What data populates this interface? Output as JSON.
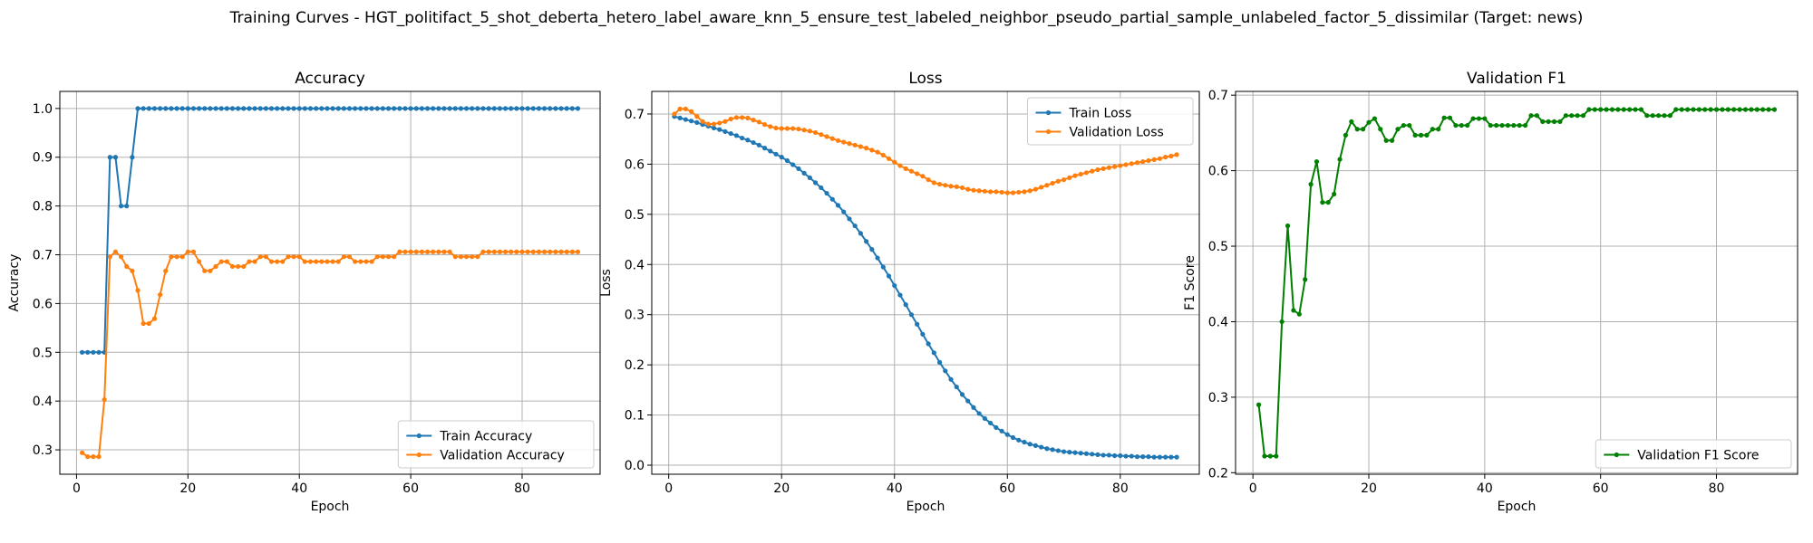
{
  "figure": {
    "title": "Training Curves - HGT_politifact_5_shot_deberta_hetero_label_aware_knn_5_ensure_test_labeled_neighbor_pseudo_partial_sample_unlabeled_factor_5_dissimilar (Target: news)"
  },
  "chart_data": [
    {
      "type": "line",
      "title": "Accuracy",
      "xlabel": "Epoch",
      "ylabel": "Accuracy",
      "xlim": [
        -3,
        94
      ],
      "ylim": [
        0.25,
        1.035
      ],
      "xticks": [
        0,
        20,
        40,
        60,
        80
      ],
      "yticks": [
        0.3,
        0.4,
        0.5,
        0.6,
        0.7,
        0.8,
        0.9,
        1.0
      ],
      "ytick_labels": [
        "0.3",
        "0.4",
        "0.5",
        "0.6",
        "0.7",
        "0.8",
        "0.9",
        "1.0"
      ],
      "grid": true,
      "legend": "lower-right",
      "x_start": 1,
      "series": [
        {
          "name": "Train Accuracy",
          "color": "#1f77b4",
          "values": [
            0.5,
            0.5,
            0.5,
            0.5,
            0.5,
            0.9,
            0.9,
            0.8,
            0.8,
            0.9,
            1,
            1,
            1,
            1,
            1,
            1,
            1,
            1,
            1,
            1,
            1,
            1,
            1,
            1,
            1,
            1,
            1,
            1,
            1,
            1,
            1,
            1,
            1,
            1,
            1,
            1,
            1,
            1,
            1,
            1,
            1,
            1,
            1,
            1,
            1,
            1,
            1,
            1,
            1,
            1,
            1,
            1,
            1,
            1,
            1,
            1,
            1,
            1,
            1,
            1,
            1,
            1,
            1,
            1,
            1,
            1,
            1,
            1,
            1,
            1,
            1,
            1,
            1,
            1,
            1,
            1,
            1,
            1,
            1,
            1,
            1,
            1,
            1,
            1,
            1,
            1,
            1,
            1,
            1,
            1
          ]
        },
        {
          "name": "Validation Accuracy",
          "color": "#ff7f0e",
          "values": [
            0.294,
            0.286,
            0.286,
            0.286,
            0.403,
            0.696,
            0.706,
            0.696,
            0.676,
            0.667,
            0.627,
            0.559,
            0.559,
            0.569,
            0.618,
            0.667,
            0.696,
            0.696,
            0.696,
            0.706,
            0.706,
            0.686,
            0.667,
            0.667,
            0.676,
            0.686,
            0.686,
            0.676,
            0.676,
            0.676,
            0.686,
            0.686,
            0.696,
            0.696,
            0.686,
            0.686,
            0.686,
            0.696,
            0.696,
            0.696,
            0.686,
            0.686,
            0.686,
            0.686,
            0.686,
            0.686,
            0.686,
            0.696,
            0.696,
            0.686,
            0.686,
            0.686,
            0.686,
            0.696,
            0.696,
            0.696,
            0.696,
            0.706,
            0.706,
            0.706,
            0.706,
            0.706,
            0.706,
            0.706,
            0.706,
            0.706,
            0.706,
            0.696,
            0.696,
            0.696,
            0.696,
            0.696,
            0.706,
            0.706,
            0.706,
            0.706,
            0.706,
            0.706,
            0.706,
            0.706,
            0.706,
            0.706,
            0.706,
            0.706,
            0.706,
            0.706,
            0.706,
            0.706,
            0.706,
            0.706
          ]
        }
      ]
    },
    {
      "type": "line",
      "title": "Loss",
      "xlabel": "Epoch",
      "ylabel": "Loss",
      "xlim": [
        -3,
        94
      ],
      "ylim": [
        -0.018,
        0.745
      ],
      "xticks": [
        0,
        20,
        40,
        60,
        80
      ],
      "yticks": [
        0,
        0.1,
        0.2,
        0.3,
        0.4,
        0.5,
        0.6,
        0.7
      ],
      "ytick_labels": [
        "0.0",
        "0.1",
        "0.2",
        "0.3",
        "0.4",
        "0.5",
        "0.6",
        "0.7"
      ],
      "grid": true,
      "legend": "upper-right",
      "x_start": 1,
      "series": [
        {
          "name": "Train Loss",
          "color": "#1f77b4",
          "values": [
            0.695,
            0.692,
            0.689,
            0.686,
            0.683,
            0.679,
            0.676,
            0.672,
            0.669,
            0.665,
            0.661,
            0.657,
            0.652,
            0.648,
            0.643,
            0.638,
            0.632,
            0.626,
            0.62,
            0.614,
            0.607,
            0.599,
            0.591,
            0.582,
            0.573,
            0.563,
            0.553,
            0.542,
            0.53,
            0.518,
            0.505,
            0.491,
            0.477,
            0.462,
            0.446,
            0.43,
            0.413,
            0.395,
            0.377,
            0.358,
            0.339,
            0.32,
            0.3,
            0.281,
            0.261,
            0.242,
            0.224,
            0.205,
            0.188,
            0.171,
            0.156,
            0.141,
            0.128,
            0.115,
            0.103,
            0.093,
            0.084,
            0.075,
            0.068,
            0.061,
            0.055,
            0.05,
            0.046,
            0.042,
            0.039,
            0.036,
            0.033,
            0.031,
            0.029,
            0.027,
            0.026,
            0.025,
            0.024,
            0.023,
            0.022,
            0.021,
            0.02,
            0.02,
            0.019,
            0.019,
            0.018,
            0.018,
            0.017,
            0.017,
            0.017,
            0.016,
            0.016,
            0.016,
            0.016,
            0.016
          ]
        },
        {
          "name": "Validation Loss",
          "color": "#ff7f0e",
          "values": [
            0.7,
            0.71,
            0.71,
            0.705,
            0.695,
            0.685,
            0.68,
            0.68,
            0.682,
            0.685,
            0.69,
            0.693,
            0.693,
            0.692,
            0.688,
            0.684,
            0.679,
            0.675,
            0.672,
            0.671,
            0.671,
            0.671,
            0.67,
            0.668,
            0.666,
            0.663,
            0.659,
            0.655,
            0.651,
            0.647,
            0.644,
            0.641,
            0.638,
            0.635,
            0.632,
            0.628,
            0.624,
            0.618,
            0.611,
            0.604,
            0.597,
            0.591,
            0.586,
            0.581,
            0.576,
            0.569,
            0.563,
            0.56,
            0.558,
            0.556,
            0.555,
            0.553,
            0.55,
            0.548,
            0.547,
            0.546,
            0.545,
            0.545,
            0.544,
            0.543,
            0.543,
            0.544,
            0.545,
            0.547,
            0.55,
            0.554,
            0.558,
            0.562,
            0.566,
            0.569,
            0.573,
            0.577,
            0.58,
            0.583,
            0.586,
            0.589,
            0.591,
            0.593,
            0.595,
            0.597,
            0.599,
            0.601,
            0.603,
            0.605,
            0.607,
            0.609,
            0.611,
            0.614,
            0.616,
            0.619
          ]
        }
      ]
    },
    {
      "type": "line",
      "title": "Validation F1",
      "xlabel": "Epoch",
      "ylabel": "F1 Score",
      "xlim": [
        -3,
        94
      ],
      "ylim": [
        0.198,
        0.705
      ],
      "xticks": [
        0,
        20,
        40,
        60,
        80
      ],
      "yticks": [
        0.2,
        0.3,
        0.4,
        0.5,
        0.6,
        0.7
      ],
      "ytick_labels": [
        "0.2",
        "0.3",
        "0.4",
        "0.5",
        "0.6",
        "0.7"
      ],
      "grid": true,
      "legend": "lower-right",
      "x_start": 1,
      "series": [
        {
          "name": "Validation F1 Score",
          "color": "#008000",
          "values": [
            0.29,
            0.222,
            0.222,
            0.222,
            0.4,
            0.527,
            0.415,
            0.41,
            0.456,
            0.582,
            0.612,
            0.558,
            0.558,
            0.569,
            0.615,
            0.647,
            0.665,
            0.655,
            0.655,
            0.664,
            0.669,
            0.655,
            0.64,
            0.64,
            0.655,
            0.66,
            0.66,
            0.647,
            0.647,
            0.647,
            0.655,
            0.655,
            0.67,
            0.67,
            0.66,
            0.66,
            0.66,
            0.669,
            0.669,
            0.669,
            0.66,
            0.66,
            0.66,
            0.66,
            0.66,
            0.66,
            0.66,
            0.673,
            0.673,
            0.665,
            0.665,
            0.665,
            0.665,
            0.673,
            0.673,
            0.673,
            0.673,
            0.681,
            0.681,
            0.681,
            0.681,
            0.681,
            0.681,
            0.681,
            0.681,
            0.681,
            0.681,
            0.673,
            0.673,
            0.673,
            0.673,
            0.673,
            0.681,
            0.681,
            0.681,
            0.681,
            0.681,
            0.681,
            0.681,
            0.681,
            0.681,
            0.681,
            0.681,
            0.681,
            0.681,
            0.681,
            0.681,
            0.681,
            0.681,
            0.681
          ]
        }
      ]
    }
  ]
}
